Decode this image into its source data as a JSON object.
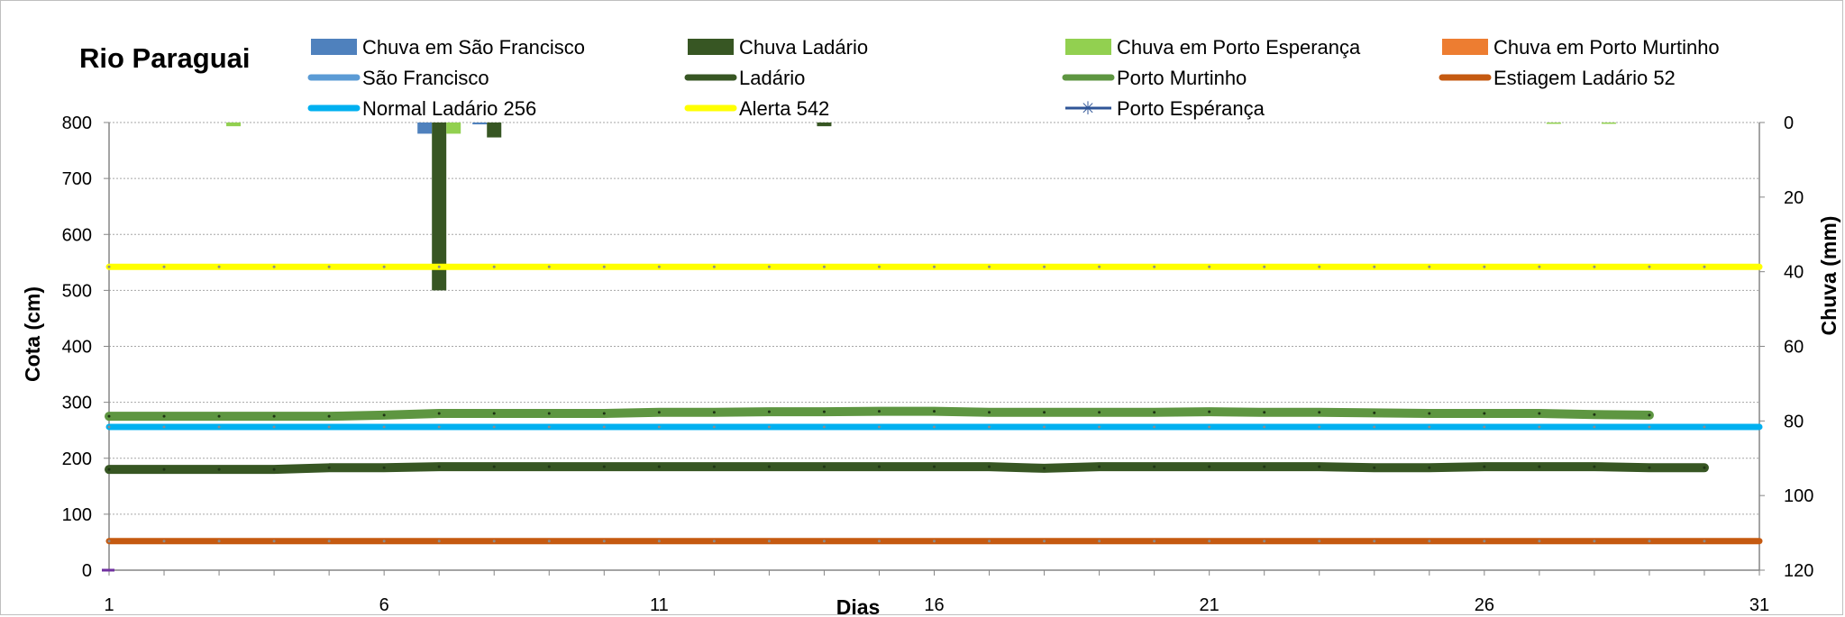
{
  "chart_data": {
    "type": "line",
    "title": "Rio Paraguai",
    "xlabel": "Dias",
    "ylabel": "Cota  (cm)",
    "y2label": "Chuva (mm)",
    "xlim": [
      1,
      31
    ],
    "ylim": [
      0,
      800
    ],
    "y2lim": [
      0,
      120
    ],
    "y2_inverted": true,
    "grid": true,
    "legend_position": "top",
    "x_ticks": [
      "1",
      "6",
      "11",
      "16",
      "21",
      "26",
      "31"
    ],
    "y_ticks": [
      "0",
      "100",
      "200",
      "300",
      "400",
      "500",
      "600",
      "700",
      "800"
    ],
    "y2_ticks": [
      "0",
      "20",
      "40",
      "60",
      "80",
      "100",
      "120"
    ],
    "legend": [
      {
        "label": "Chuva em São Francisco",
        "kind": "bar",
        "color": "#4f81bd"
      },
      {
        "label": "Chuva Ladário",
        "kind": "bar",
        "color": "#375623"
      },
      {
        "label": "Chuva em Porto Esperança",
        "kind": "bar",
        "color": "#92d050"
      },
      {
        "label": "Chuva em Porto Murtinho",
        "kind": "bar",
        "color": "#ed7d31"
      },
      {
        "label": "São Francisco",
        "kind": "line",
        "color": "#5b9bd5"
      },
      {
        "label": "Ladário",
        "kind": "line",
        "color": "#375623"
      },
      {
        "label": "Porto Murtinho",
        "kind": "line",
        "color": "#5e9641"
      },
      {
        "label": "Estiagem Ladário 52",
        "kind": "line",
        "color": "#c55a11"
      },
      {
        "label": "Normal Ladário 256",
        "kind": "line",
        "color": "#00b0f0"
      },
      {
        "label": "Alerta 542",
        "kind": "line",
        "color": "#ffff00"
      },
      {
        "label": "Porto Espérança",
        "kind": "marker",
        "color": "#2f5597"
      }
    ],
    "series": [
      {
        "name": "Porto Murtinho",
        "axis": "left",
        "color": "#5e9641",
        "x": [
          1,
          2,
          3,
          4,
          5,
          6,
          7,
          8,
          9,
          10,
          11,
          12,
          13,
          14,
          15,
          16,
          17,
          18,
          19,
          20,
          21,
          22,
          23,
          24,
          25,
          26,
          27,
          28,
          29
        ],
        "values": [
          275,
          275,
          275,
          275,
          275,
          277,
          280,
          280,
          280,
          280,
          282,
          282,
          283,
          283,
          284,
          284,
          282,
          282,
          282,
          282,
          283,
          282,
          282,
          281,
          280,
          280,
          280,
          278,
          277
        ]
      },
      {
        "name": "Ladário",
        "axis": "left",
        "color": "#375623",
        "x": [
          1,
          2,
          3,
          4,
          5,
          6,
          7,
          8,
          9,
          10,
          11,
          12,
          13,
          14,
          15,
          16,
          17,
          18,
          19,
          20,
          21,
          22,
          23,
          24,
          25,
          26,
          27,
          28,
          29,
          30
        ],
        "values": [
          180,
          180,
          180,
          180,
          183,
          183,
          185,
          185,
          185,
          185,
          185,
          185,
          185,
          185,
          185,
          185,
          185,
          182,
          185,
          185,
          185,
          185,
          185,
          183,
          183,
          185,
          185,
          185,
          183,
          183
        ]
      },
      {
        "name": "Normal Ladário 256",
        "axis": "left",
        "color": "#00b0f0",
        "x": [
          1,
          31
        ],
        "values": [
          256,
          256
        ]
      },
      {
        "name": "Alerta 542",
        "axis": "left",
        "color": "#ffff00",
        "x": [
          1,
          31
        ],
        "values": [
          542,
          542
        ]
      },
      {
        "name": "Estiagem Ladário 52",
        "axis": "left",
        "color": "#c55a11",
        "x": [
          1,
          31
        ],
        "values": [
          52,
          52
        ]
      }
    ],
    "rain_bars": [
      {
        "name": "Chuva em São Francisco",
        "color": "#4f81bd",
        "x": [
          7,
          8
        ],
        "values": [
          3,
          0.5
        ]
      },
      {
        "name": "Chuva Ladário",
        "color": "#375623",
        "x": [
          7,
          8,
          14
        ],
        "values": [
          45,
          4,
          1
        ]
      },
      {
        "name": "Chuva em Porto Esperança",
        "color": "#92d050",
        "x": [
          3,
          7,
          27,
          28
        ],
        "values": [
          1,
          3,
          0.2,
          0.2
        ]
      }
    ]
  }
}
